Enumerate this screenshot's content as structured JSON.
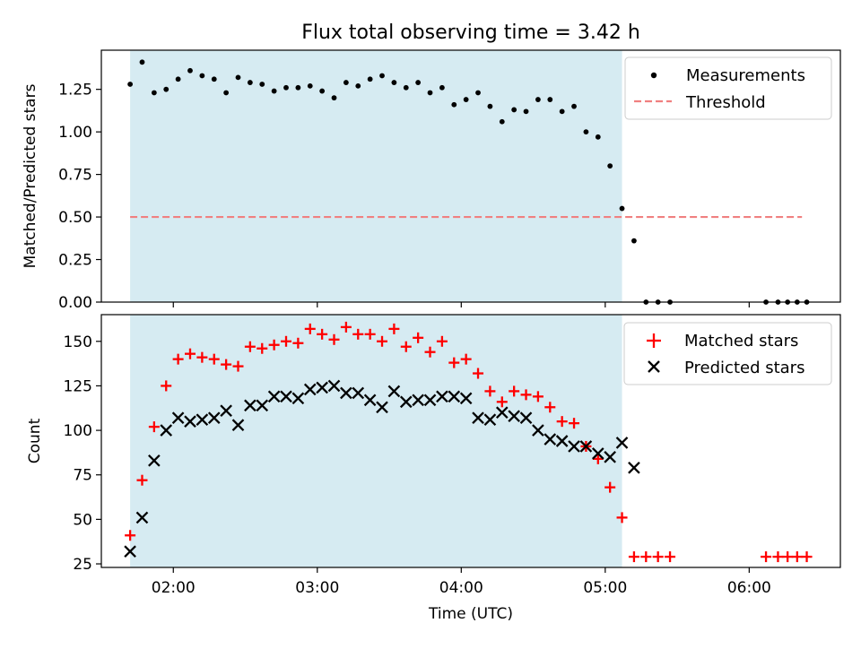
{
  "figure": {
    "title": "Flux total observing time = 3.42 h"
  },
  "chart_data": [
    {
      "type": "scatter",
      "panel": "top",
      "title": "Flux total observing time = 3.42 h",
      "xlabel": "",
      "ylabel": "Matched/Predicted stars",
      "xlim": [
        "01:30",
        "06:38"
      ],
      "ylim": [
        0,
        1.48
      ],
      "yticks": [
        "0.00",
        "0.25",
        "0.50",
        "0.75",
        "1.00",
        "1.25"
      ],
      "ytick_values": [
        0,
        0.25,
        0.5,
        0.75,
        1.0,
        1.25
      ],
      "grid": false,
      "observing_window": {
        "start": "01:42",
        "end": "05:07",
        "color": "#add8e6"
      },
      "legend": {
        "position": "top-right",
        "entries": [
          "Measurements",
          "Threshold"
        ]
      },
      "threshold": {
        "name": "Threshold",
        "value": 0.5,
        "x_start": "01:42",
        "x_end": "06:22",
        "color": "#f08080",
        "style": "dashed"
      },
      "series": [
        {
          "name": "Measurements",
          "marker": "dot",
          "color": "#000000",
          "x": [
            "01:42",
            "01:47",
            "01:52",
            "01:57",
            "02:02",
            "02:07",
            "02:12",
            "02:17",
            "02:22",
            "02:27",
            "02:32",
            "02:37",
            "02:42",
            "02:47",
            "02:52",
            "02:57",
            "03:02",
            "03:07",
            "03:12",
            "03:17",
            "03:22",
            "03:27",
            "03:32",
            "03:37",
            "03:42",
            "03:47",
            "03:52",
            "03:57",
            "04:02",
            "04:07",
            "04:12",
            "04:17",
            "04:22",
            "04:27",
            "04:32",
            "04:37",
            "04:42",
            "04:47",
            "04:52",
            "04:57",
            "05:02",
            "05:07",
            "05:12",
            "05:17",
            "05:22",
            "05:27",
            "06:07",
            "06:12",
            "06:16",
            "06:20",
            "06:24"
          ],
          "y": [
            1.28,
            1.41,
            1.23,
            1.25,
            1.31,
            1.36,
            1.33,
            1.31,
            1.23,
            1.32,
            1.29,
            1.28,
            1.24,
            1.26,
            1.26,
            1.27,
            1.24,
            1.2,
            1.29,
            1.27,
            1.31,
            1.33,
            1.29,
            1.26,
            1.29,
            1.23,
            1.26,
            1.16,
            1.19,
            1.23,
            1.15,
            1.06,
            1.13,
            1.12,
            1.19,
            1.19,
            1.12,
            1.15,
            1.0,
            0.97,
            0.8,
            0.55,
            0.36,
            0.0,
            0.0,
            0.0,
            0.0,
            0.0,
            0.0,
            0.0,
            0.0
          ]
        }
      ]
    },
    {
      "type": "scatter",
      "panel": "bottom",
      "title": "",
      "xlabel": "Time (UTC)",
      "ylabel": "Count",
      "xticks": [
        "02:00",
        "03:00",
        "04:00",
        "05:00",
        "06:00"
      ],
      "xlim": [
        "01:30",
        "06:38"
      ],
      "ylim": [
        23,
        165
      ],
      "yticks": [
        "25",
        "50",
        "75",
        "100",
        "125",
        "150"
      ],
      "ytick_values": [
        25,
        50,
        75,
        100,
        125,
        150
      ],
      "grid": false,
      "observing_window": {
        "start": "01:42",
        "end": "05:07",
        "color": "#add8e6"
      },
      "legend": {
        "position": "top-right",
        "entries": [
          "Matched stars",
          "Predicted stars"
        ]
      },
      "series": [
        {
          "name": "Matched stars",
          "marker": "plus",
          "color": "#ff0000",
          "x": [
            "01:42",
            "01:47",
            "01:52",
            "01:57",
            "02:02",
            "02:07",
            "02:12",
            "02:17",
            "02:22",
            "02:27",
            "02:32",
            "02:37",
            "02:42",
            "02:47",
            "02:52",
            "02:57",
            "03:02",
            "03:07",
            "03:12",
            "03:17",
            "03:22",
            "03:27",
            "03:32",
            "03:37",
            "03:42",
            "03:47",
            "03:52",
            "03:57",
            "04:02",
            "04:07",
            "04:12",
            "04:17",
            "04:22",
            "04:27",
            "04:32",
            "04:37",
            "04:42",
            "04:47",
            "04:52",
            "04:57",
            "05:02",
            "05:07",
            "05:12",
            "05:17",
            "05:22",
            "05:27",
            "06:07",
            "06:12",
            "06:16",
            "06:20",
            "06:24"
          ],
          "y": [
            41,
            72,
            102,
            125,
            140,
            143,
            141,
            140,
            137,
            136,
            147,
            146,
            148,
            150,
            149,
            157,
            154,
            151,
            158,
            154,
            154,
            150,
            157,
            147,
            152,
            144,
            150,
            138,
            140,
            132,
            122,
            116,
            122,
            120,
            119,
            113,
            105,
            104,
            91,
            84,
            68,
            51,
            29,
            29,
            29,
            29,
            29,
            29,
            29,
            29,
            29
          ]
        },
        {
          "name": "Predicted stars",
          "marker": "x",
          "color": "#000000",
          "x": [
            "01:42",
            "01:47",
            "01:52",
            "01:57",
            "02:02",
            "02:07",
            "02:12",
            "02:17",
            "02:22",
            "02:27",
            "02:32",
            "02:37",
            "02:42",
            "02:47",
            "02:52",
            "02:57",
            "03:02",
            "03:07",
            "03:12",
            "03:17",
            "03:22",
            "03:27",
            "03:32",
            "03:37",
            "03:42",
            "03:47",
            "03:52",
            "03:57",
            "04:02",
            "04:07",
            "04:12",
            "04:17",
            "04:22",
            "04:27",
            "04:32",
            "04:37",
            "04:42",
            "04:47",
            "04:52",
            "04:57",
            "05:02",
            "05:07",
            "05:12"
          ],
          "y": [
            32,
            51,
            83,
            100,
            107,
            105,
            106,
            107,
            111,
            103,
            114,
            114,
            119,
            119,
            118,
            123,
            124,
            125,
            121,
            121,
            117,
            113,
            122,
            116,
            117,
            117,
            119,
            119,
            118,
            107,
            106,
            110,
            108,
            107,
            100,
            95,
            94,
            91,
            91,
            87,
            85,
            93,
            79
          ]
        }
      ]
    }
  ]
}
